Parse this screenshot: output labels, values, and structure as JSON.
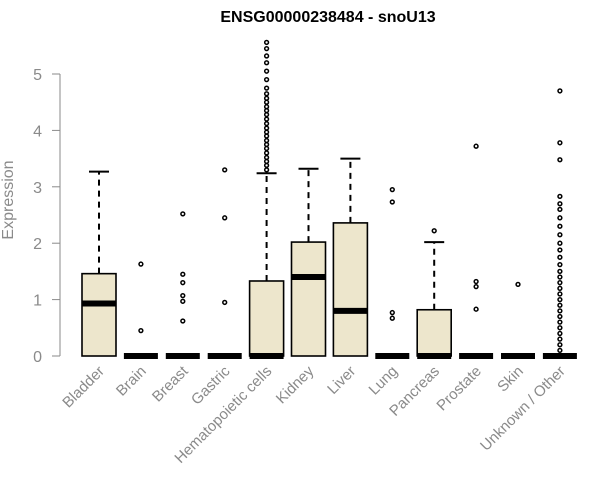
{
  "chart_data": {
    "type": "boxplot",
    "title": "ENSG00000238484 - snoU13",
    "ylabel": "Expression",
    "xlabel": "",
    "ylim": [
      0,
      5.6
    ],
    "yticks": [
      0,
      1,
      2,
      3,
      4,
      5
    ],
    "box_color": "#ede6cc",
    "line_color": "#000000",
    "axis_color": "#8a8a8a",
    "grid": false,
    "categories": [
      "Bladder",
      "Brain",
      "Breast",
      "Gastric",
      "Hematopoietic cells",
      "Kidney",
      "Liver",
      "Lung",
      "Pancreas",
      "Prostate",
      "Skin",
      "Unknown / Other"
    ],
    "boxes": [
      {
        "q1": 0,
        "median": 0.93,
        "q3": 1.46,
        "whisker_low": 0,
        "whisker_high": 3.27,
        "outliers": []
      },
      {
        "q1": 0,
        "median": 0,
        "q3": 0,
        "whisker_low": 0,
        "whisker_high": 0,
        "outliers": [
          0.45,
          1.63
        ]
      },
      {
        "q1": 0,
        "median": 0,
        "q3": 0,
        "whisker_low": 0,
        "whisker_high": 0,
        "outliers": [
          0.62,
          0.97,
          1.07,
          1.3,
          1.45,
          2.52
        ]
      },
      {
        "q1": 0,
        "median": 0,
        "q3": 0,
        "whisker_low": 0,
        "whisker_high": 0,
        "outliers": [
          0.95,
          2.45,
          3.3
        ]
      },
      {
        "q1": 0,
        "median": 0,
        "q3": 1.33,
        "whisker_low": 0,
        "whisker_high": 3.24,
        "outliers": [
          3.3,
          3.38,
          3.45,
          3.52,
          3.6,
          3.68,
          3.75,
          3.82,
          3.9,
          3.97,
          4.04,
          4.12,
          4.2,
          4.28,
          4.35,
          4.42,
          4.5,
          4.57,
          4.65,
          4.75,
          4.9,
          5.05,
          5.2,
          5.32,
          5.45,
          5.56
        ]
      },
      {
        "q1": 0,
        "median": 1.4,
        "q3": 2.02,
        "whisker_low": 0,
        "whisker_high": 3.32,
        "outliers": []
      },
      {
        "q1": 0,
        "median": 0.8,
        "q3": 2.36,
        "whisker_low": 0,
        "whisker_high": 3.5,
        "outliers": []
      },
      {
        "q1": 0,
        "median": 0,
        "q3": 0,
        "whisker_low": 0,
        "whisker_high": 0,
        "outliers": [
          0.67,
          0.77,
          2.73,
          2.95
        ]
      },
      {
        "q1": 0,
        "median": 0,
        "q3": 0.82,
        "whisker_low": 0,
        "whisker_high": 2.02,
        "outliers": [
          2.22
        ]
      },
      {
        "q1": 0,
        "median": 0,
        "q3": 0,
        "whisker_low": 0,
        "whisker_high": 0,
        "outliers": [
          0.83,
          1.23,
          1.32,
          3.72
        ]
      },
      {
        "q1": 0,
        "median": 0,
        "q3": 0,
        "whisker_low": 0,
        "whisker_high": 0,
        "outliers": [
          1.27
        ]
      },
      {
        "q1": 0,
        "median": 0,
        "q3": 0,
        "whisker_low": 0,
        "whisker_high": 0,
        "outliers": [
          0.1,
          0.2,
          0.3,
          0.4,
          0.5,
          0.6,
          0.7,
          0.8,
          0.9,
          1.0,
          1.1,
          1.2,
          1.3,
          1.4,
          1.5,
          1.62,
          1.75,
          1.88,
          2.0,
          2.15,
          2.3,
          2.45,
          2.6,
          2.7,
          2.83,
          3.48,
          3.78,
          4.7
        ]
      }
    ]
  }
}
